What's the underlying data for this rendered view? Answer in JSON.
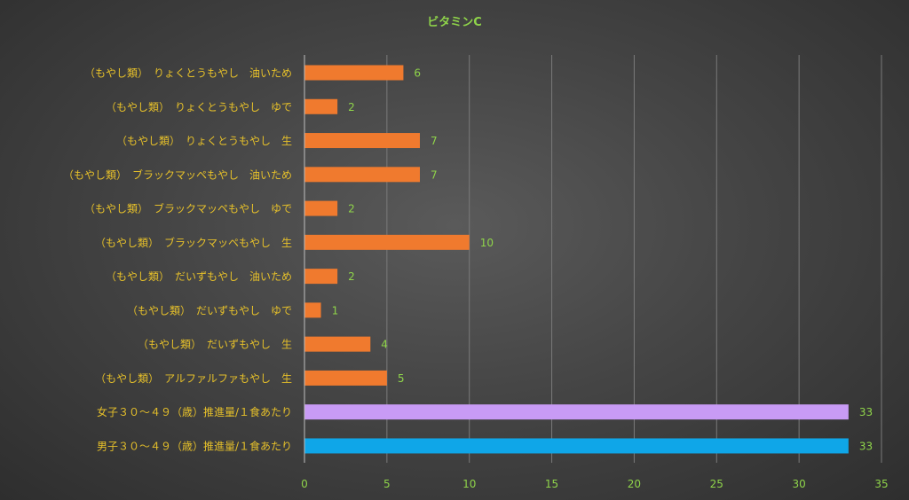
{
  "chart_data": {
    "type": "bar",
    "orientation": "horizontal",
    "title": "ビタミンC",
    "categories": [
      "（もやし類）　りょくとうもやし　油いため",
      "（もやし類）　りょくとうもやし　ゆで",
      "（もやし類）　りょくとうもやし　生",
      "（もやし類）　ブラックマッペもやし　油いため",
      "（もやし類）　ブラックマッペもやし　ゆで",
      "（もやし類）　ブラックマッペもやし　生",
      "（もやし類）　だいずもやし　油いため",
      "（もやし類）　だいずもやし　ゆで",
      "（もやし類）　だいずもやし　生",
      "（もやし類）　アルファルファもやし　生",
      "女子３０～４９（歳）推進量/１食あたり",
      "男子３０～４９（歳）推進量/１食あたり"
    ],
    "values": [
      6,
      2,
      7,
      7,
      2,
      10,
      2,
      1,
      4,
      5,
      33,
      33
    ],
    "bar_colors": [
      "#f07a2e",
      "#f07a2e",
      "#f07a2e",
      "#f07a2e",
      "#f07a2e",
      "#f07a2e",
      "#f07a2e",
      "#f07a2e",
      "#f07a2e",
      "#f07a2e",
      "#c89bf5",
      "#0fa6e8"
    ],
    "xticks": [
      0,
      5,
      10,
      15,
      20,
      25,
      30,
      35
    ],
    "xlim": [
      0,
      35
    ],
    "grid": true,
    "legend": "none",
    "colors": {
      "title": "#8fd44a",
      "category_label": "#e6c02a",
      "tick_label": "#8fd44a",
      "data_label": "#8fd44a",
      "gridline": "#7a7a7a"
    }
  }
}
